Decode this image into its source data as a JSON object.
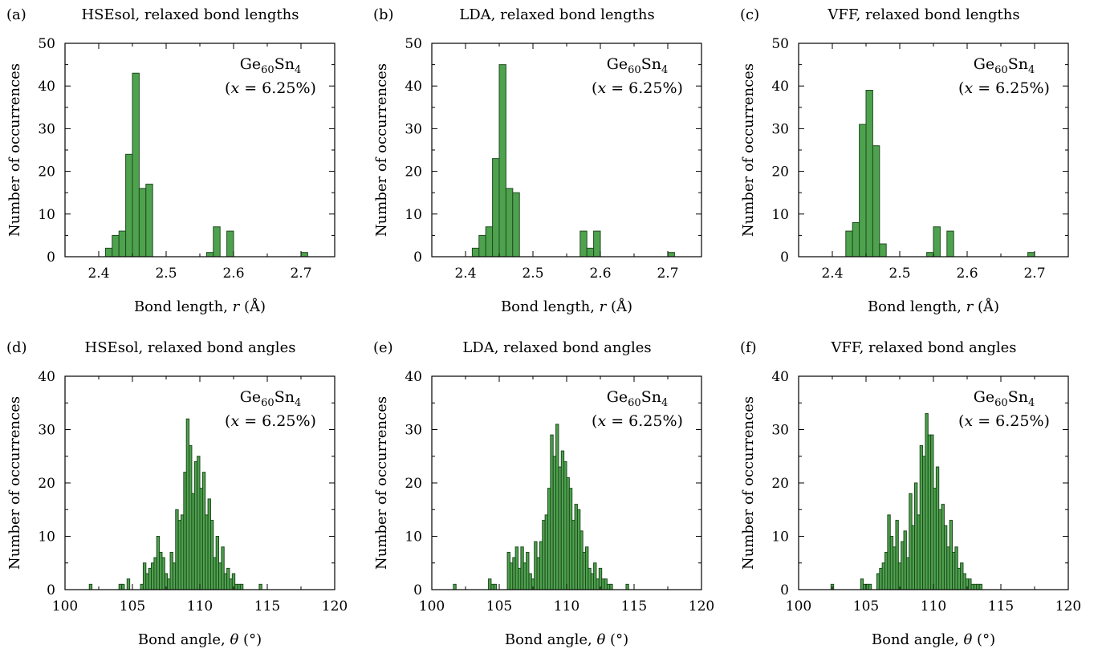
{
  "chart_data": [
    {
      "type": "bar",
      "panel_label": "(a)",
      "title": "HSEsol, relaxed bond lengths",
      "xlabel": "Bond length, r (Å)",
      "ylabel": "Number of occurrences",
      "xlim": [
        2.35,
        2.75
      ],
      "ylim": [
        0,
        50
      ],
      "xticks": [
        2.4,
        2.5,
        2.6,
        2.7
      ],
      "yticks": [
        0,
        10,
        20,
        30,
        40,
        50
      ],
      "bin_width": 0.01,
      "annotation": [
        "Ge60Sn4",
        "(x = 6.25%)"
      ],
      "x": [
        2.415,
        2.425,
        2.435,
        2.445,
        2.455,
        2.465,
        2.475,
        2.565,
        2.575,
        2.595,
        2.705
      ],
      "values": [
        2,
        5,
        6,
        24,
        43,
        16,
        17,
        1,
        7,
        6,
        1
      ]
    },
    {
      "type": "bar",
      "panel_label": "(b)",
      "title": "LDA, relaxed bond lengths",
      "xlabel": "Bond length, r (Å)",
      "ylabel": "Number of occurrences",
      "xlim": [
        2.35,
        2.75
      ],
      "ylim": [
        0,
        50
      ],
      "xticks": [
        2.4,
        2.5,
        2.6,
        2.7
      ],
      "yticks": [
        0,
        10,
        20,
        30,
        40,
        50
      ],
      "bin_width": 0.01,
      "annotation": [
        "Ge60Sn4",
        "(x = 6.25%)"
      ],
      "x": [
        2.415,
        2.425,
        2.435,
        2.445,
        2.455,
        2.465,
        2.475,
        2.575,
        2.585,
        2.595,
        2.705
      ],
      "values": [
        2,
        5,
        7,
        23,
        45,
        16,
        15,
        6,
        2,
        6,
        1
      ]
    },
    {
      "type": "bar",
      "panel_label": "(c)",
      "title": "VFF, relaxed bond lengths",
      "xlabel": "Bond length, r (Å)",
      "ylabel": "Number of occurrences",
      "xlim": [
        2.35,
        2.75
      ],
      "ylim": [
        0,
        50
      ],
      "xticks": [
        2.4,
        2.5,
        2.6,
        2.7
      ],
      "yticks": [
        0,
        10,
        20,
        30,
        40,
        50
      ],
      "bin_width": 0.01,
      "annotation": [
        "Ge60Sn4",
        "(x = 6.25%)"
      ],
      "x": [
        2.425,
        2.435,
        2.445,
        2.455,
        2.465,
        2.475,
        2.545,
        2.555,
        2.575,
        2.695
      ],
      "values": [
        6,
        8,
        31,
        39,
        26,
        3,
        1,
        7,
        6,
        1
      ]
    },
    {
      "type": "bar",
      "panel_label": "(d)",
      "title": "HSEsol, relaxed bond angles",
      "xlabel": "Bond angle, θ (°)",
      "ylabel": "Number of occurrences",
      "xlim": [
        100,
        120
      ],
      "ylim": [
        0,
        40
      ],
      "xticks": [
        100,
        105,
        110,
        115,
        120
      ],
      "yticks": [
        0,
        10,
        20,
        30,
        40
      ],
      "bin_width": 0.2,
      "annotation": [
        "Ge60Sn4",
        "(x = 6.25%)"
      ],
      "x": [
        101.9,
        104.1,
        104.3,
        104.7,
        105.7,
        105.9,
        106.1,
        106.3,
        106.5,
        106.7,
        106.9,
        107.1,
        107.3,
        107.5,
        107.7,
        107.9,
        108.1,
        108.3,
        108.5,
        108.7,
        108.9,
        109.1,
        109.3,
        109.5,
        109.7,
        109.9,
        110.1,
        110.3,
        110.5,
        110.7,
        110.9,
        111.1,
        111.3,
        111.5,
        111.7,
        111.9,
        112.1,
        112.3,
        112.5,
        112.7,
        112.9,
        113.1,
        114.5
      ],
      "values": [
        1,
        1,
        1,
        2,
        1,
        5,
        3,
        4,
        5,
        6,
        10,
        7,
        6,
        3,
        2,
        7,
        5,
        15,
        13,
        14,
        22,
        32,
        27,
        18,
        24,
        25,
        19,
        22,
        14,
        17,
        13,
        6,
        10,
        5,
        8,
        3,
        4,
        2,
        3,
        1,
        1,
        1,
        1
      ]
    },
    {
      "type": "bar",
      "panel_label": "(e)",
      "title": "LDA, relaxed bond angles",
      "xlabel": "Bond angle, θ (°)",
      "ylabel": "Number of occurrences",
      "xlim": [
        100,
        120
      ],
      "ylim": [
        0,
        40
      ],
      "xticks": [
        100,
        105,
        110,
        115,
        120
      ],
      "yticks": [
        0,
        10,
        20,
        30,
        40
      ],
      "bin_width": 0.2,
      "annotation": [
        "Ge60Sn4",
        "(x = 6.25%)"
      ],
      "x": [
        101.7,
        104.3,
        104.5,
        104.7,
        105.7,
        105.9,
        106.1,
        106.3,
        106.5,
        106.7,
        106.9,
        107.1,
        107.3,
        107.5,
        107.7,
        107.9,
        108.1,
        108.3,
        108.5,
        108.7,
        108.9,
        109.1,
        109.3,
        109.5,
        109.7,
        109.9,
        110.1,
        110.3,
        110.5,
        110.7,
        110.9,
        111.1,
        111.3,
        111.5,
        111.7,
        111.9,
        112.1,
        112.3,
        112.5,
        112.7,
        112.9,
        113.1,
        113.3,
        114.5
      ],
      "values": [
        1,
        2,
        1,
        1,
        7,
        5,
        6,
        8,
        4,
        8,
        5,
        7,
        3,
        2,
        9,
        6,
        9,
        13,
        14,
        19,
        29,
        25,
        31,
        23,
        26,
        24,
        21,
        19,
        13,
        16,
        15,
        11,
        7,
        8,
        4,
        3,
        5,
        2,
        4,
        2,
        2,
        1,
        1,
        1
      ]
    },
    {
      "type": "bar",
      "panel_label": "(f)",
      "title": "VFF, relaxed bond angles",
      "xlabel": "Bond angle, θ (°)",
      "ylabel": "Number of occurrences",
      "xlim": [
        100,
        120
      ],
      "ylim": [
        0,
        40
      ],
      "xticks": [
        100,
        105,
        110,
        115,
        120
      ],
      "yticks": [
        0,
        10,
        20,
        30,
        40
      ],
      "bin_width": 0.2,
      "annotation": [
        "Ge60Sn4",
        "(x = 6.25%)"
      ],
      "x": [
        102.5,
        104.7,
        104.9,
        105.1,
        105.3,
        105.9,
        106.1,
        106.3,
        106.5,
        106.7,
        106.9,
        107.1,
        107.3,
        107.5,
        107.7,
        107.9,
        108.1,
        108.3,
        108.5,
        108.7,
        108.9,
        109.1,
        109.3,
        109.5,
        109.7,
        109.9,
        110.1,
        110.3,
        110.5,
        110.7,
        110.9,
        111.1,
        111.3,
        111.5,
        111.7,
        111.9,
        112.1,
        112.3,
        112.5,
        112.7,
        112.9,
        113.1,
        113.3,
        113.5
      ],
      "values": [
        1,
        2,
        1,
        1,
        1,
        3,
        4,
        5,
        7,
        14,
        10,
        8,
        13,
        5,
        9,
        11,
        6,
        18,
        12,
        20,
        14,
        27,
        25,
        33,
        29,
        29,
        19,
        23,
        15,
        16,
        12,
        8,
        13,
        7,
        8,
        4,
        5,
        3,
        2,
        2,
        1,
        1,
        1,
        1
      ]
    }
  ]
}
